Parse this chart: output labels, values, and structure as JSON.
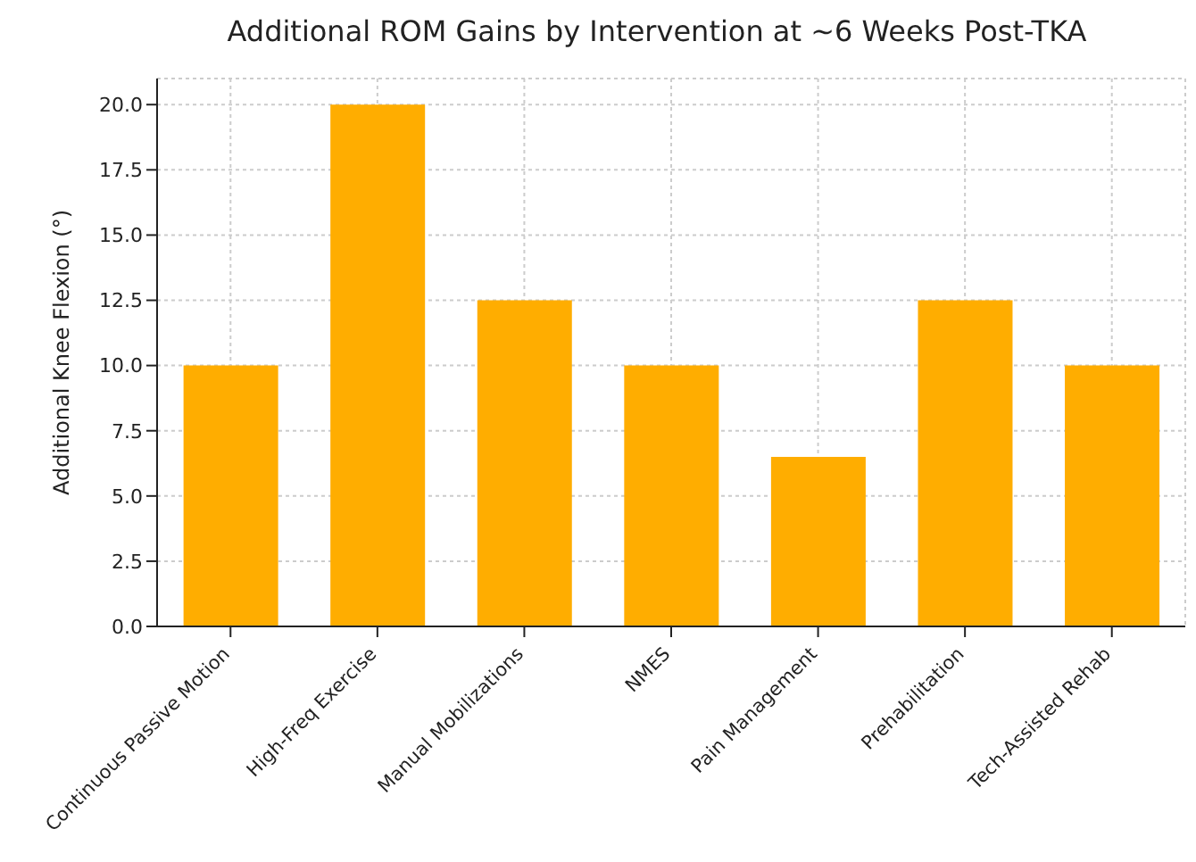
{
  "chart_data": {
    "type": "bar",
    "title": "Additional ROM Gains by Intervention at ~6 Weeks Post-TKA",
    "ylabel": "Additional Knee Flexion (°)",
    "categories": [
      "Continuous Passive Motion",
      "High-Freq Exercise",
      "Manual Mobilizations",
      "NMES",
      "Pain Management",
      "Prehabilitation",
      "Tech-Assisted Rehab"
    ],
    "values": [
      10,
      20,
      12.5,
      10,
      6.5,
      12.5,
      10
    ],
    "color": "#ffad00",
    "ylim": [
      0,
      21
    ],
    "yticks": [
      {
        "value": 0,
        "label": "0.0"
      },
      {
        "value": 2.5,
        "label": "2.5"
      },
      {
        "value": 5,
        "label": "5.0"
      },
      {
        "value": 7.5,
        "label": "7.5"
      },
      {
        "value": 10,
        "label": "10.0"
      },
      {
        "value": 12.5,
        "label": "12.5"
      },
      {
        "value": 15,
        "label": "15.0"
      },
      {
        "value": 17.5,
        "label": "17.5"
      },
      {
        "value": 20,
        "label": "20.0"
      }
    ],
    "grid": true
  }
}
